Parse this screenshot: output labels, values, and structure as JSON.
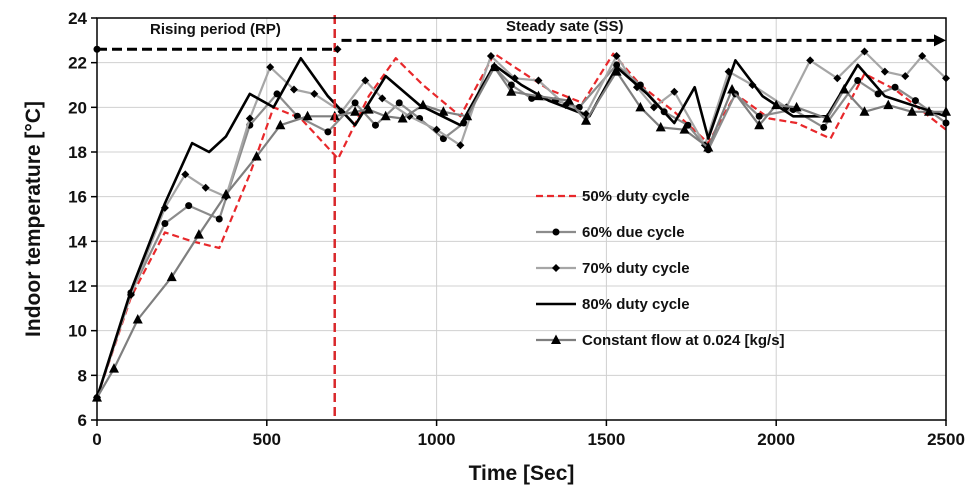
{
  "chart_data": {
    "type": "line",
    "xlabel": "Time [Sec]",
    "ylabel": "Indoor temperature [°C]",
    "xlim": [
      0,
      2500
    ],
    "ylim": [
      6,
      24
    ],
    "xticks": [
      0,
      500,
      1000,
      1500,
      2000,
      2500
    ],
    "yticks": [
      6,
      8,
      10,
      12,
      14,
      16,
      18,
      20,
      22,
      24
    ],
    "grid": "horizontal-and-vertical",
    "legend_position": "right-middle",
    "annotations": {
      "rising_period": "Rising period (RP)",
      "steady_state": "Steady  sate (SS)",
      "divider_x": 700,
      "rising_arrow": {
        "from": 0,
        "to": 720,
        "y": 22.6
      },
      "steady_arrow": {
        "from": 720,
        "to": 2500,
        "y": 23.0
      }
    },
    "series": [
      {
        "name": "50% duty cycle",
        "color": "#e8282b",
        "style": "dashed",
        "marker": "none",
        "x": [
          0,
          100,
          200,
          280,
          360,
          450,
          520,
          600,
          710,
          800,
          880,
          960,
          1070,
          1170,
          1240,
          1330,
          1430,
          1520,
          1600,
          1700,
          1800,
          1880,
          1980,
          2060,
          2160,
          2260,
          2350,
          2500
        ],
        "y": [
          7.0,
          11.5,
          14.4,
          14.0,
          13.7,
          17.0,
          20.0,
          19.5,
          17.7,
          20.5,
          22.2,
          21.0,
          19.6,
          22.4,
          21.7,
          20.8,
          20.2,
          22.4,
          21.0,
          19.8,
          18.4,
          20.6,
          19.5,
          19.3,
          18.6,
          21.5,
          20.8,
          19.0
        ]
      },
      {
        "name": "60% due cycle",
        "color": "#8c8c8c",
        "style": "solid",
        "marker": "circle",
        "x": [
          0,
          100,
          200,
          270,
          360,
          450,
          530,
          590,
          680,
          760,
          820,
          890,
          950,
          1020,
          1080,
          1170,
          1220,
          1280,
          1350,
          1420,
          1530,
          1600,
          1670,
          1740,
          1800,
          1880,
          1950,
          2050,
          2140,
          2240,
          2300,
          2350,
          2410,
          2500
        ],
        "y": [
          7.0,
          11.7,
          14.8,
          15.6,
          15.0,
          19.2,
          20.6,
          19.6,
          18.9,
          20.2,
          19.2,
          20.2,
          19.5,
          18.6,
          19.3,
          21.8,
          21.0,
          20.4,
          20.3,
          20.0,
          21.9,
          21.0,
          19.8,
          19.2,
          18.1,
          20.6,
          19.6,
          19.9,
          19.1,
          21.2,
          20.6,
          20.9,
          20.3,
          19.3
        ]
      },
      {
        "name": "70% duty cycle",
        "color": "#a6a6a6",
        "style": "solid",
        "marker": "diamond",
        "x": [
          0,
          100,
          200,
          260,
          320,
          380,
          450,
          510,
          580,
          640,
          720,
          790,
          840,
          920,
          1000,
          1070,
          1160,
          1230,
          1300,
          1380,
          1440,
          1530,
          1590,
          1640,
          1700,
          1790,
          1860,
          1930,
          2030,
          2100,
          2180,
          2260,
          2320,
          2380,
          2430,
          2500
        ],
        "y": [
          7.0,
          11.6,
          15.5,
          17.0,
          16.4,
          16.0,
          19.5,
          21.8,
          20.8,
          20.6,
          19.8,
          21.2,
          20.4,
          19.6,
          19.0,
          18.3,
          22.3,
          21.3,
          21.2,
          20.1,
          19.7,
          22.3,
          20.9,
          20.0,
          20.7,
          18.3,
          21.6,
          21.0,
          20.0,
          22.1,
          21.3,
          22.5,
          21.6,
          21.4,
          22.3,
          21.3
        ]
      },
      {
        "name": "80% duty cycle",
        "color": "#000000",
        "style": "solid",
        "marker": "none",
        "x": [
          0,
          100,
          200,
          280,
          330,
          380,
          450,
          520,
          600,
          680,
          760,
          850,
          950,
          1070,
          1170,
          1250,
          1330,
          1450,
          1530,
          1620,
          1700,
          1760,
          1800,
          1880,
          1960,
          2050,
          2150,
          2240,
          2320,
          2420,
          2500
        ],
        "y": [
          7.0,
          11.8,
          15.7,
          18.4,
          18.0,
          18.7,
          20.6,
          20.0,
          22.2,
          20.5,
          19.2,
          21.4,
          20.1,
          19.2,
          21.9,
          21.0,
          20.3,
          19.6,
          21.8,
          20.6,
          19.3,
          20.9,
          18.6,
          22.1,
          20.5,
          19.6,
          19.6,
          21.9,
          20.5,
          20.0,
          19.6
        ]
      },
      {
        "name": "Constant flow at 0.024 [kg/s]",
        "color": "#7f7f7f",
        "style": "solid",
        "marker": "triangle",
        "x": [
          0,
          50,
          120,
          220,
          300,
          380,
          470,
          540,
          620,
          700,
          760,
          800,
          850,
          900,
          960,
          1020,
          1090,
          1170,
          1220,
          1300,
          1390,
          1440,
          1530,
          1600,
          1660,
          1730,
          1800,
          1870,
          1950,
          2000,
          2060,
          2150,
          2200,
          2260,
          2330,
          2400,
          2450,
          2500
        ],
        "y": [
          7.0,
          8.3,
          10.5,
          12.4,
          14.3,
          16.1,
          17.8,
          19.2,
          19.6,
          19.6,
          19.8,
          19.9,
          19.6,
          19.5,
          20.1,
          19.8,
          19.6,
          21.8,
          20.7,
          20.5,
          20.3,
          19.4,
          21.6,
          20.0,
          19.1,
          19.0,
          18.2,
          20.8,
          19.2,
          20.1,
          20.0,
          19.5,
          20.8,
          19.8,
          20.1,
          19.8,
          19.8,
          19.8
        ]
      }
    ]
  }
}
